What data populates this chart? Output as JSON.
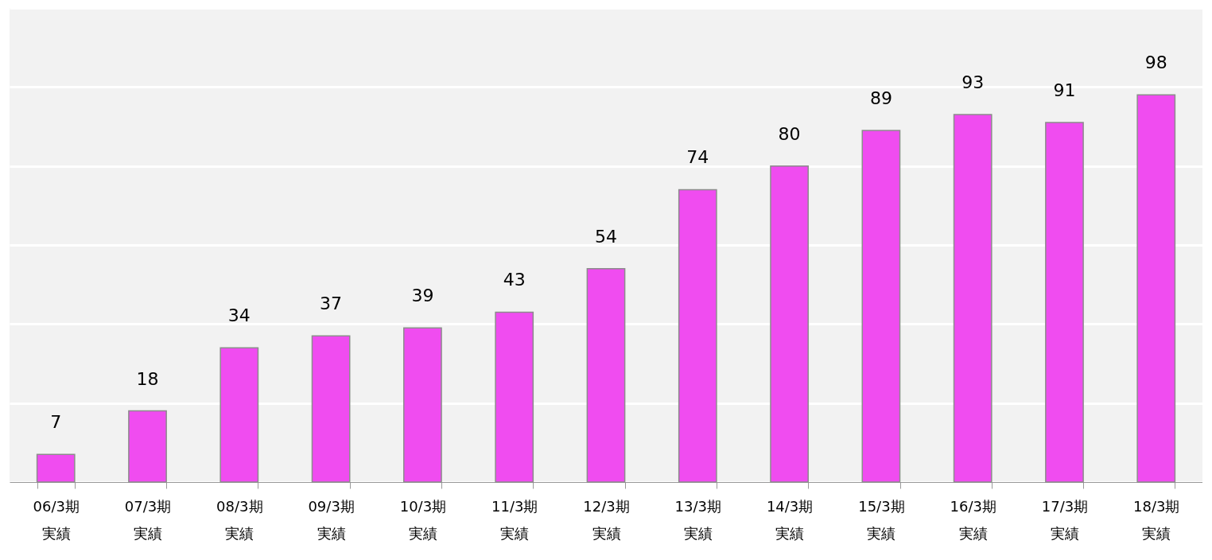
{
  "chart_data": {
    "type": "bar",
    "categories": [
      "06/3期実績",
      "07/3期実績",
      "08/3期実績",
      "09/3期実績",
      "10/3期実績",
      "11/3期実績",
      "12/3期実績",
      "13/3期実績",
      "14/3期実績",
      "15/3期実績",
      "16/3期実績",
      "17/3期実績",
      "18/3期実績"
    ],
    "values": [
      7,
      18,
      34,
      37,
      39,
      43,
      54,
      74,
      80,
      89,
      93,
      91,
      98
    ],
    "color": "#f04cf0",
    "ylim": [
      0,
      120
    ],
    "yticks": [
      {
        "value": 0,
        "label": null
      },
      {
        "value": 20,
        "label": null
      },
      {
        "value": 40,
        "label": null
      },
      {
        "value": 60,
        "label": null
      },
      {
        "value": 80,
        "label": null
      },
      {
        "value": 100,
        "label": null
      },
      {
        "value": 120,
        "label": null
      }
    ],
    "grid": "y",
    "tick_labels": "x",
    "data_labels": true
  }
}
